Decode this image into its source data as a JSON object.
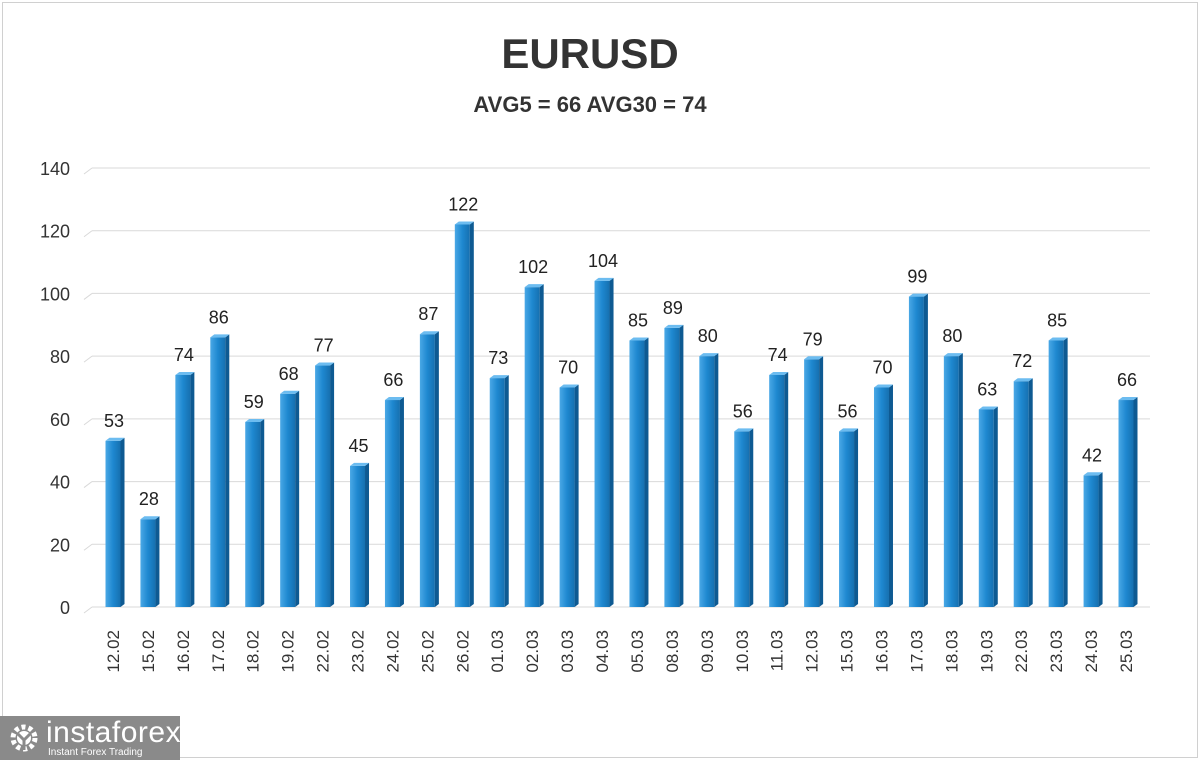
{
  "chart_data": {
    "type": "bar",
    "title": "EURUSD",
    "subtitle": "AVG5 = 66 AVG30 = 74",
    "xlabel": "",
    "ylabel": "",
    "ylim": [
      0,
      140
    ],
    "yticks": [
      0,
      20,
      40,
      60,
      80,
      100,
      120,
      140
    ],
    "grid": true,
    "legend": "none",
    "categories": [
      "12.02",
      "15.02",
      "16.02",
      "17.02",
      "18.02",
      "19.02",
      "22.02",
      "23.02",
      "24.02",
      "25.02",
      "26.02",
      "01.03",
      "02.03",
      "03.03",
      "04.03",
      "05.03",
      "08.03",
      "09.03",
      "10.03",
      "11.03",
      "12.03",
      "15.03",
      "16.03",
      "17.03",
      "18.03",
      "19.03",
      "22.03",
      "23.03",
      "24.03",
      "25.03"
    ],
    "values": [
      53,
      28,
      74,
      86,
      59,
      68,
      77,
      45,
      66,
      87,
      122,
      73,
      102,
      70,
      104,
      85,
      89,
      80,
      56,
      74,
      79,
      56,
      70,
      99,
      80,
      63,
      72,
      85,
      42,
      66
    ],
    "bar_color": "#1e88d0"
  },
  "logo": {
    "name": "instaforex",
    "tagline": "Instant Forex Trading"
  }
}
